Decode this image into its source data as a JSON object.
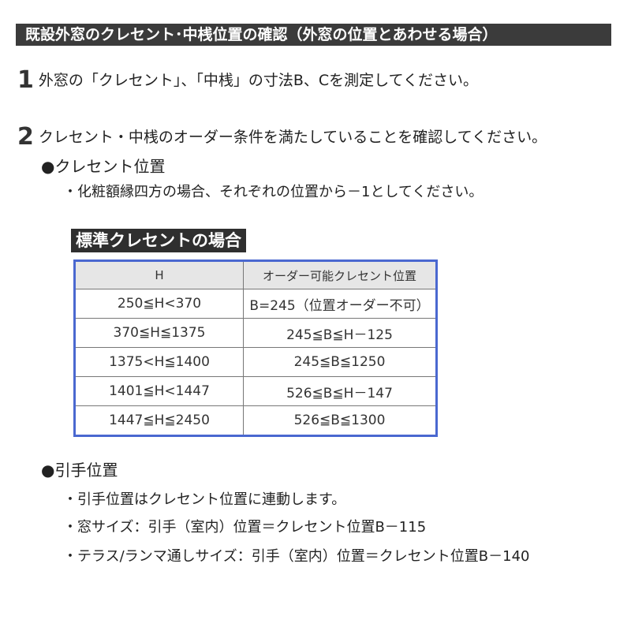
{
  "title": "既設外窓のクレセント･中桟位置の確認（外窓の位置とあわせる場合）",
  "step1": {
    "number": "1",
    "text": "外窓の「クレセント」、「中桟」の寸法B、Cを測定してください。"
  },
  "step2": {
    "number": "2",
    "text": "クレセント・中桟のオーダー条件を満たしていることを確認してください。"
  },
  "crescent": {
    "heading": "●クレセント位置",
    "note": "・化粧額縁四方の場合、それぞれの位置から－1としてください。"
  },
  "table": {
    "label": "標準クレセントの場合",
    "headers": [
      "H",
      "オーダー可能クレセント位置"
    ],
    "rows": [
      [
        "250≦H<370",
        "B=245（位置オーダー不可）"
      ],
      [
        "370≦H≦1375",
        "245≦B≦H－125"
      ],
      [
        "1375<H≦1400",
        "245≦B≦1250"
      ],
      [
        "1401≦H<1447",
        "526≦B≦H－147"
      ],
      [
        "1447≦H≦2450",
        "526≦B≦1300"
      ]
    ]
  },
  "handle": {
    "heading": "●引手位置",
    "items": [
      "・引手位置はクレセント位置に連動します。",
      "・窓サイズ：引手（室内）位置＝クレセント位置B－115",
      "・テラス/ランマ通しサイズ：引手（室内）位置＝クレセント位置B－140"
    ]
  }
}
